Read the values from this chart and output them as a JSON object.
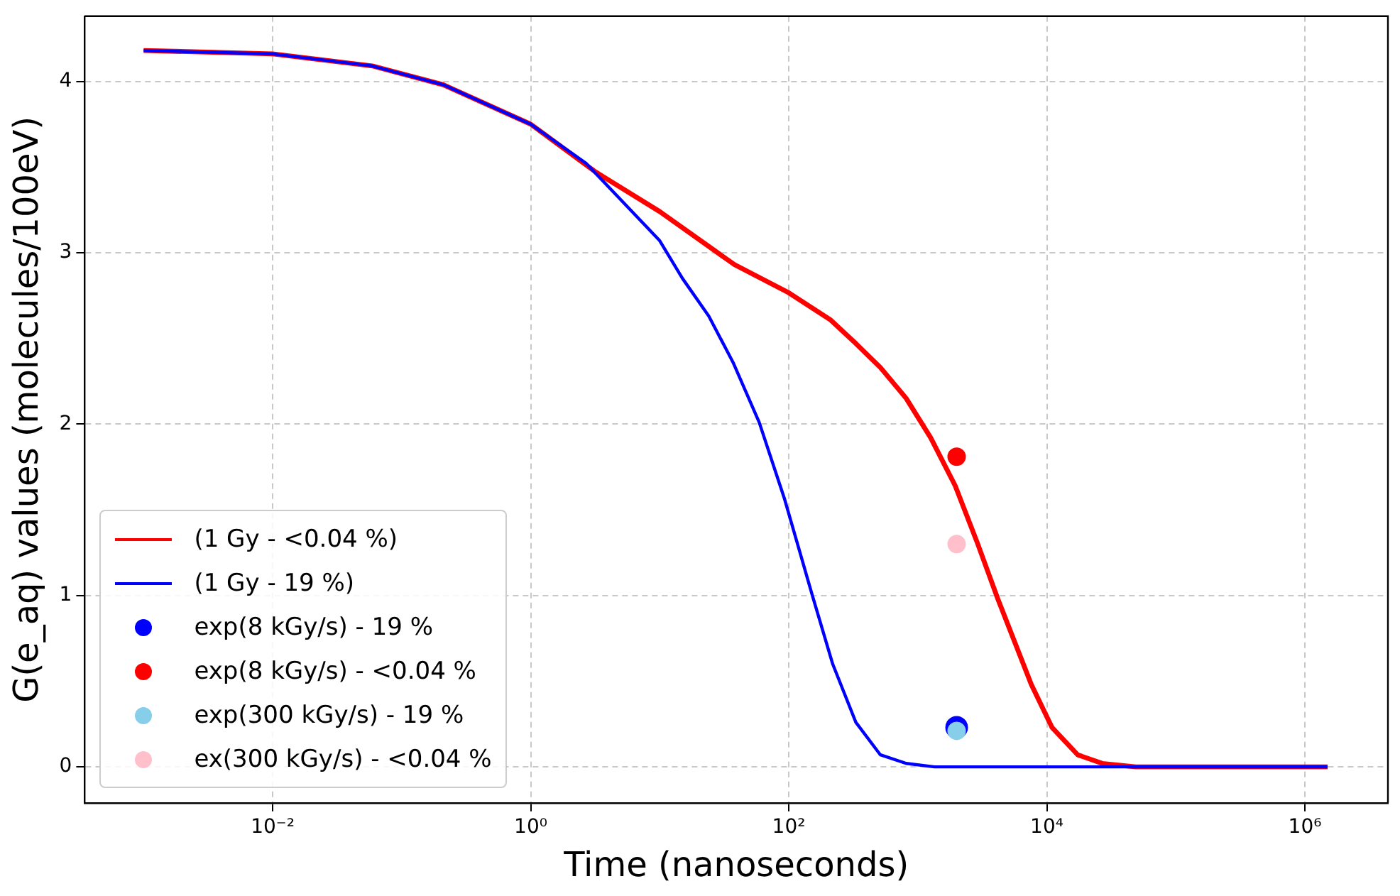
{
  "chart_data": {
    "type": "line",
    "xlabel": "Time (nanoseconds)",
    "ylabel": "G(e_aq) values (molecules/100eV)",
    "log": "x",
    "grid": true,
    "legend": "bottom left",
    "marker": "none",
    "line_style": "solid",
    "xlim": [
      0.00035,
      4400000
    ],
    "ylim": [
      -0.21,
      4.38
    ],
    "xticks": [
      {
        "value": 0.01,
        "label": "10⁻²"
      },
      {
        "value": 1,
        "label": "10⁰"
      },
      {
        "value": 100,
        "label": "10²"
      },
      {
        "value": 10000,
        "label": "10⁴"
      },
      {
        "value": 1000000,
        "label": "10⁶"
      }
    ],
    "yticks": [
      0,
      1,
      2,
      3,
      4
    ],
    "series": [
      {
        "name": "(1 Gy - <0.04 %)",
        "color": "#ff0000",
        "x": [
          0.001,
          0.01,
          0.059,
          0.21,
          1,
          3.2,
          10,
          38,
          98,
          209,
          331,
          513,
          813,
          1259,
          1950,
          2884,
          4169,
          7586,
          10965,
          17378,
          26915,
          48978,
          1500000
        ],
        "values": [
          4.18,
          4.16,
          4.09,
          3.98,
          3.75,
          3.47,
          3.24,
          2.93,
          2.77,
          2.61,
          2.47,
          2.33,
          2.15,
          1.92,
          1.64,
          1.31,
          0.98,
          0.48,
          0.23,
          0.07,
          0.02,
          0,
          0
        ]
      },
      {
        "name": "(1 Gy - 19 %)",
        "color": "#0000ff",
        "x": [
          0.001,
          0.01,
          0.059,
          0.21,
          1,
          2.7,
          10,
          15,
          24,
          37,
          59,
          93,
          151,
          219,
          331,
          513,
          813,
          1349,
          1500000
        ],
        "values": [
          4.18,
          4.16,
          4.09,
          3.98,
          3.75,
          3.52,
          3.07,
          2.85,
          2.63,
          2.36,
          2.01,
          1.56,
          1.01,
          0.6,
          0.26,
          0.07,
          0.02,
          0,
          0
        ]
      },
      {
        "name": "exp(8 kGy/s) - 19 %",
        "type": "scatter",
        "marker": "circle",
        "color": "#0000ff",
        "x": [
          2000
        ],
        "values": [
          0.23
        ]
      },
      {
        "name": "exp(8 kGy/s) - <0.04 %",
        "type": "scatter",
        "marker": "circle",
        "color": "#ff0000",
        "x": [
          2000
        ],
        "values": [
          1.81
        ]
      },
      {
        "name": "exp(300 kGy/s) - 19 %",
        "type": "scatter",
        "marker": "circle",
        "color": "#87ceeb",
        "x": [
          2000
        ],
        "values": [
          0.21
        ]
      },
      {
        "name": "ex(300 kGy/s) - <0.04 %",
        "type": "scatter",
        "marker": "circle",
        "color": "#ffc0cb",
        "x": [
          2000
        ],
        "values": [
          1.3
        ]
      }
    ]
  }
}
